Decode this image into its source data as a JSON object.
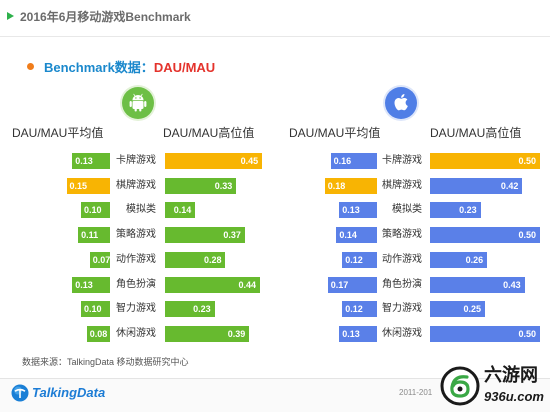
{
  "header": {
    "title": "2016年6月移动游戏Benchmark"
  },
  "subtitle": {
    "prefix": "Benchmark数据：",
    "metric": "DAU/MAU"
  },
  "colors": {
    "header_arrow": "#2eb14b",
    "bullet": "#f07d1b",
    "subtitle_prefix": "#1a88cc",
    "subtitle_metric": "#e4322b",
    "android_bar": "#67ba2f",
    "ios_bar": "#5a80e8",
    "highlight": "#f8b403"
  },
  "chart_data": [
    {
      "type": "bar",
      "orientation": "horizontal",
      "platform_icon": "android-icon",
      "color": "#67ba2f",
      "categories": [
        "卡牌游戏",
        "棋牌游戏",
        "模拟类",
        "策略游戏",
        "动作游戏",
        "角色扮演",
        "智力游戏",
        "休闲游戏"
      ],
      "series": [
        {
          "name": "DAU/MAU平均值",
          "values": [
            0.13,
            0.15,
            0.1,
            0.11,
            0.07,
            0.13,
            0.1,
            0.08
          ],
          "labels": [
            "0.13",
            "0.15",
            "0.10",
            "0.11",
            "0.07",
            "0.13",
            "0.10",
            "0.08"
          ],
          "highlight": 1
        },
        {
          "name": "DAU/MAU高位值",
          "values": [
            0.45,
            0.33,
            0.14,
            0.37,
            0.28,
            0.44,
            0.23,
            0.39
          ],
          "labels": [
            "0.45",
            "0.33",
            "0.14",
            "0.37",
            "0.28",
            "0.44",
            "0.23",
            "0.39"
          ],
          "highlight": 0
        }
      ]
    },
    {
      "type": "bar",
      "orientation": "horizontal",
      "platform_icon": "apple-icon",
      "color": "#5a80e8",
      "categories": [
        "卡牌游戏",
        "棋牌游戏",
        "模拟类",
        "策略游戏",
        "动作游戏",
        "角色扮演",
        "智力游戏",
        "休闲游戏"
      ],
      "series": [
        {
          "name": "DAU/MAU平均值",
          "values": [
            0.16,
            0.18,
            0.13,
            0.14,
            0.12,
            0.17,
            0.12,
            0.13
          ],
          "labels": [
            "0.16",
            "0.18",
            "0.13",
            "0.14",
            "0.12",
            "0.17",
            "0.12",
            "0.13"
          ],
          "highlight": 1
        },
        {
          "name": "DAU/MAU高位值",
          "values": [
            0.5,
            0.42,
            0.23,
            0.5,
            0.26,
            0.43,
            0.25,
            0.5
          ],
          "labels": [
            "0.50",
            "0.42",
            "0.23",
            "0.50",
            "0.26",
            "0.43",
            "0.25",
            "0.50"
          ],
          "highlight": 0
        }
      ]
    }
  ],
  "source": "数据来源：TalkingData 移动数据研究中心",
  "footer": {
    "logo_text": "TalkingData",
    "copyright": "2011-201"
  },
  "watermark": {
    "name": "六游网",
    "site": "936u.com"
  }
}
